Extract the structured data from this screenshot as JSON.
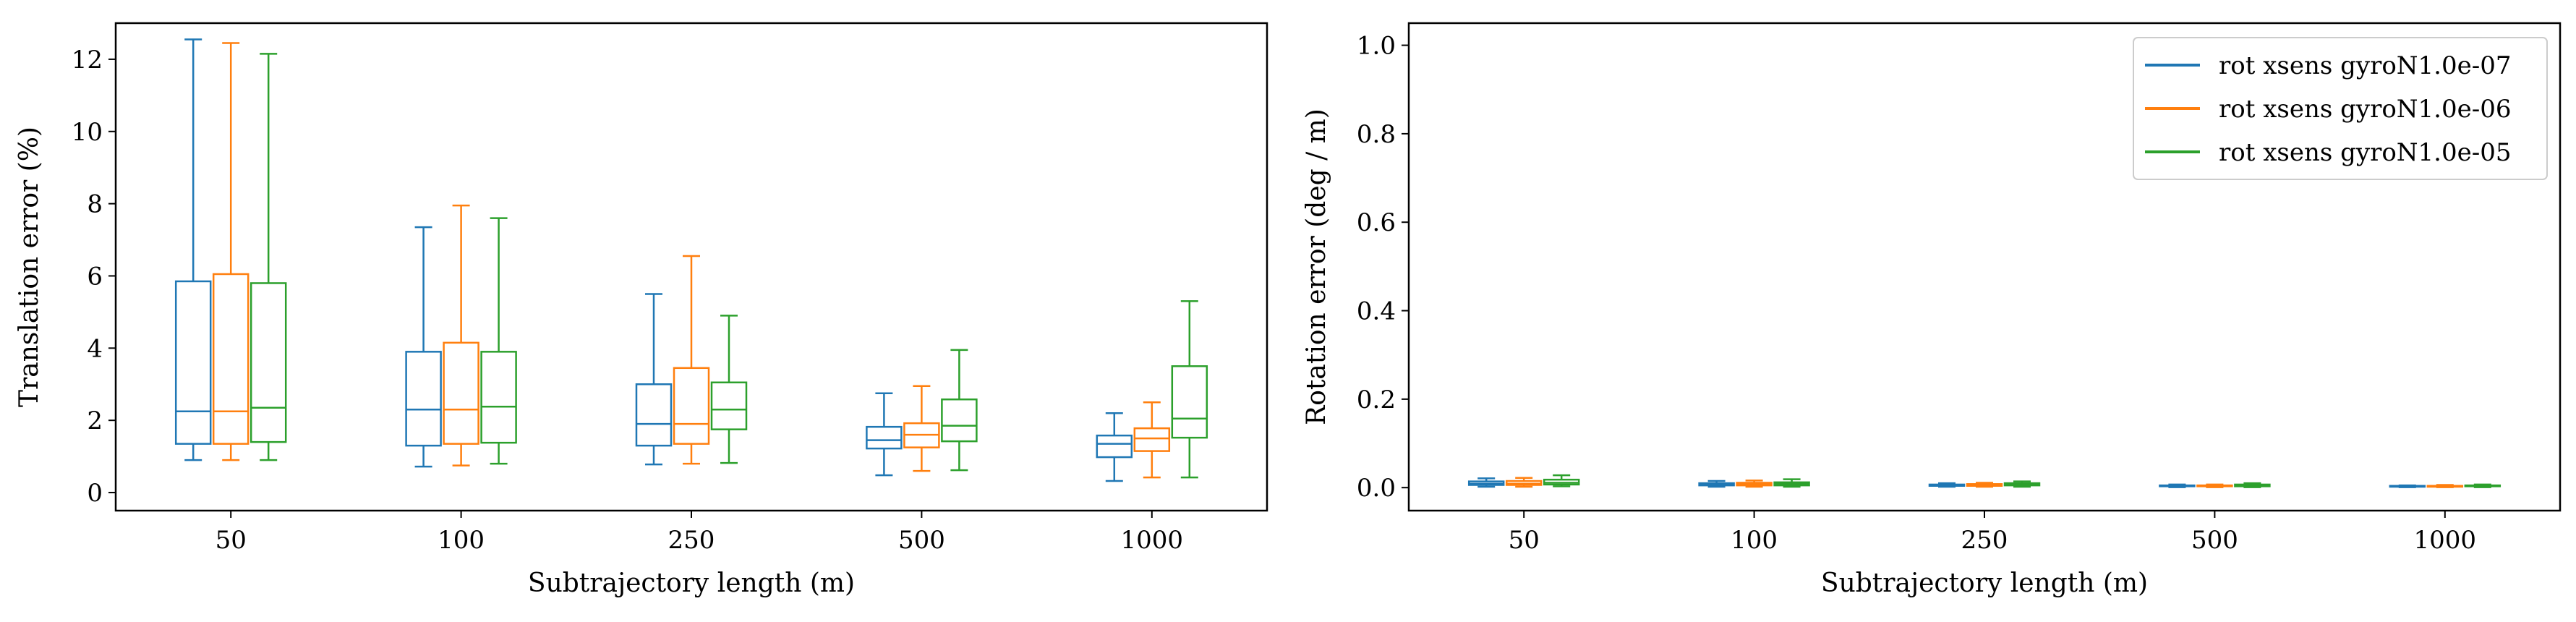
{
  "colors": {
    "series": [
      "#1f77b4",
      "#ff7f0e",
      "#2ca02c"
    ],
    "axes": "#000000",
    "background": "#ffffff"
  },
  "chart_data": [
    {
      "type": "boxplot",
      "xlabel": "Subtrajectory length (m)",
      "ylabel": "Translation error  (%)",
      "categories": [
        "50",
        "100",
        "250",
        "500",
        "1000"
      ],
      "ylim": [
        -0.5,
        13.0
      ],
      "yticks": [
        0,
        2,
        4,
        6,
        8,
        10,
        12
      ],
      "ytick_labels": [
        "0",
        "2",
        "4",
        "6",
        "8",
        "10",
        "12"
      ],
      "grid": false,
      "series": [
        {
          "boxes": [
            {
              "whislo": 0.9,
              "q1": 1.35,
              "med": 2.25,
              "q3": 5.85,
              "whishi": 12.55
            },
            {
              "whislo": 0.72,
              "q1": 1.3,
              "med": 2.3,
              "q3": 3.9,
              "whishi": 7.35
            },
            {
              "whislo": 0.78,
              "q1": 1.3,
              "med": 1.9,
              "q3": 3.0,
              "whishi": 5.5
            },
            {
              "whislo": 0.48,
              "q1": 1.22,
              "med": 1.45,
              "q3": 1.82,
              "whishi": 2.75
            },
            {
              "whislo": 0.32,
              "q1": 0.98,
              "med": 1.35,
              "q3": 1.58,
              "whishi": 2.2
            }
          ]
        },
        {
          "boxes": [
            {
              "whislo": 0.9,
              "q1": 1.35,
              "med": 2.25,
              "q3": 6.05,
              "whishi": 12.45
            },
            {
              "whislo": 0.75,
              "q1": 1.35,
              "med": 2.3,
              "q3": 4.15,
              "whishi": 7.95
            },
            {
              "whislo": 0.8,
              "q1": 1.35,
              "med": 1.9,
              "q3": 3.45,
              "whishi": 6.55
            },
            {
              "whislo": 0.6,
              "q1": 1.25,
              "med": 1.6,
              "q3": 1.92,
              "whishi": 2.95
            },
            {
              "whislo": 0.42,
              "q1": 1.15,
              "med": 1.5,
              "q3": 1.78,
              "whishi": 2.5
            }
          ]
        },
        {
          "boxes": [
            {
              "whislo": 0.9,
              "q1": 1.4,
              "med": 2.35,
              "q3": 5.8,
              "whishi": 12.15
            },
            {
              "whislo": 0.8,
              "q1": 1.38,
              "med": 2.38,
              "q3": 3.9,
              "whishi": 7.6
            },
            {
              "whislo": 0.82,
              "q1": 1.75,
              "med": 2.3,
              "q3": 3.05,
              "whishi": 4.9
            },
            {
              "whislo": 0.62,
              "q1": 1.42,
              "med": 1.85,
              "q3": 2.58,
              "whishi": 3.95
            },
            {
              "whislo": 0.42,
              "q1": 1.52,
              "med": 2.05,
              "q3": 3.5,
              "whishi": 5.3
            }
          ]
        }
      ]
    },
    {
      "type": "boxplot",
      "xlabel": "Subtrajectory length (m)",
      "ylabel": "Rotation error  (deg / m)",
      "categories": [
        "50",
        "100",
        "250",
        "500",
        "1000"
      ],
      "ylim": [
        -0.052,
        1.05
      ],
      "yticks": [
        0.0,
        0.2,
        0.4,
        0.6,
        0.8,
        1.0
      ],
      "ytick_labels": [
        "0.0",
        "0.2",
        "0.4",
        "0.6",
        "0.8",
        "1.0"
      ],
      "grid": false,
      "legend_position": "top-right",
      "series": [
        {
          "name": "rot xsens gyroN1.0e-07",
          "boxes": [
            {
              "whislo": 0.002,
              "q1": 0.006,
              "med": 0.009,
              "q3": 0.014,
              "whishi": 0.021
            },
            {
              "whislo": 0.002,
              "q1": 0.005,
              "med": 0.007,
              "q3": 0.01,
              "whishi": 0.015
            },
            {
              "whislo": 0.002,
              "q1": 0.004,
              "med": 0.005,
              "q3": 0.007,
              "whishi": 0.01
            },
            {
              "whislo": 0.001,
              "q1": 0.003,
              "med": 0.004,
              "q3": 0.005,
              "whishi": 0.007
            },
            {
              "whislo": 0.001,
              "q1": 0.002,
              "med": 0.003,
              "q3": 0.004,
              "whishi": 0.005
            }
          ]
        },
        {
          "name": "rot xsens gyroN1.0e-06",
          "boxes": [
            {
              "whislo": 0.002,
              "q1": 0.006,
              "med": 0.009,
              "q3": 0.015,
              "whishi": 0.022
            },
            {
              "whislo": 0.002,
              "q1": 0.005,
              "med": 0.008,
              "q3": 0.011,
              "whishi": 0.016
            },
            {
              "whislo": 0.002,
              "q1": 0.004,
              "med": 0.006,
              "q3": 0.008,
              "whishi": 0.011
            },
            {
              "whislo": 0.001,
              "q1": 0.003,
              "med": 0.004,
              "q3": 0.005,
              "whishi": 0.007
            },
            {
              "whislo": 0.001,
              "q1": 0.002,
              "med": 0.003,
              "q3": 0.004,
              "whishi": 0.006
            }
          ]
        },
        {
          "name": "rot xsens gyroN1.0e-05",
          "boxes": [
            {
              "whislo": 0.003,
              "q1": 0.007,
              "med": 0.011,
              "q3": 0.018,
              "whishi": 0.028
            },
            {
              "whislo": 0.002,
              "q1": 0.005,
              "med": 0.008,
              "q3": 0.012,
              "whishi": 0.019
            },
            {
              "whislo": 0.002,
              "q1": 0.005,
              "med": 0.007,
              "q3": 0.01,
              "whishi": 0.014
            },
            {
              "whislo": 0.001,
              "q1": 0.003,
              "med": 0.005,
              "q3": 0.007,
              "whishi": 0.01
            },
            {
              "whislo": 0.001,
              "q1": 0.003,
              "med": 0.004,
              "q3": 0.005,
              "whishi": 0.007
            }
          ]
        }
      ]
    }
  ]
}
